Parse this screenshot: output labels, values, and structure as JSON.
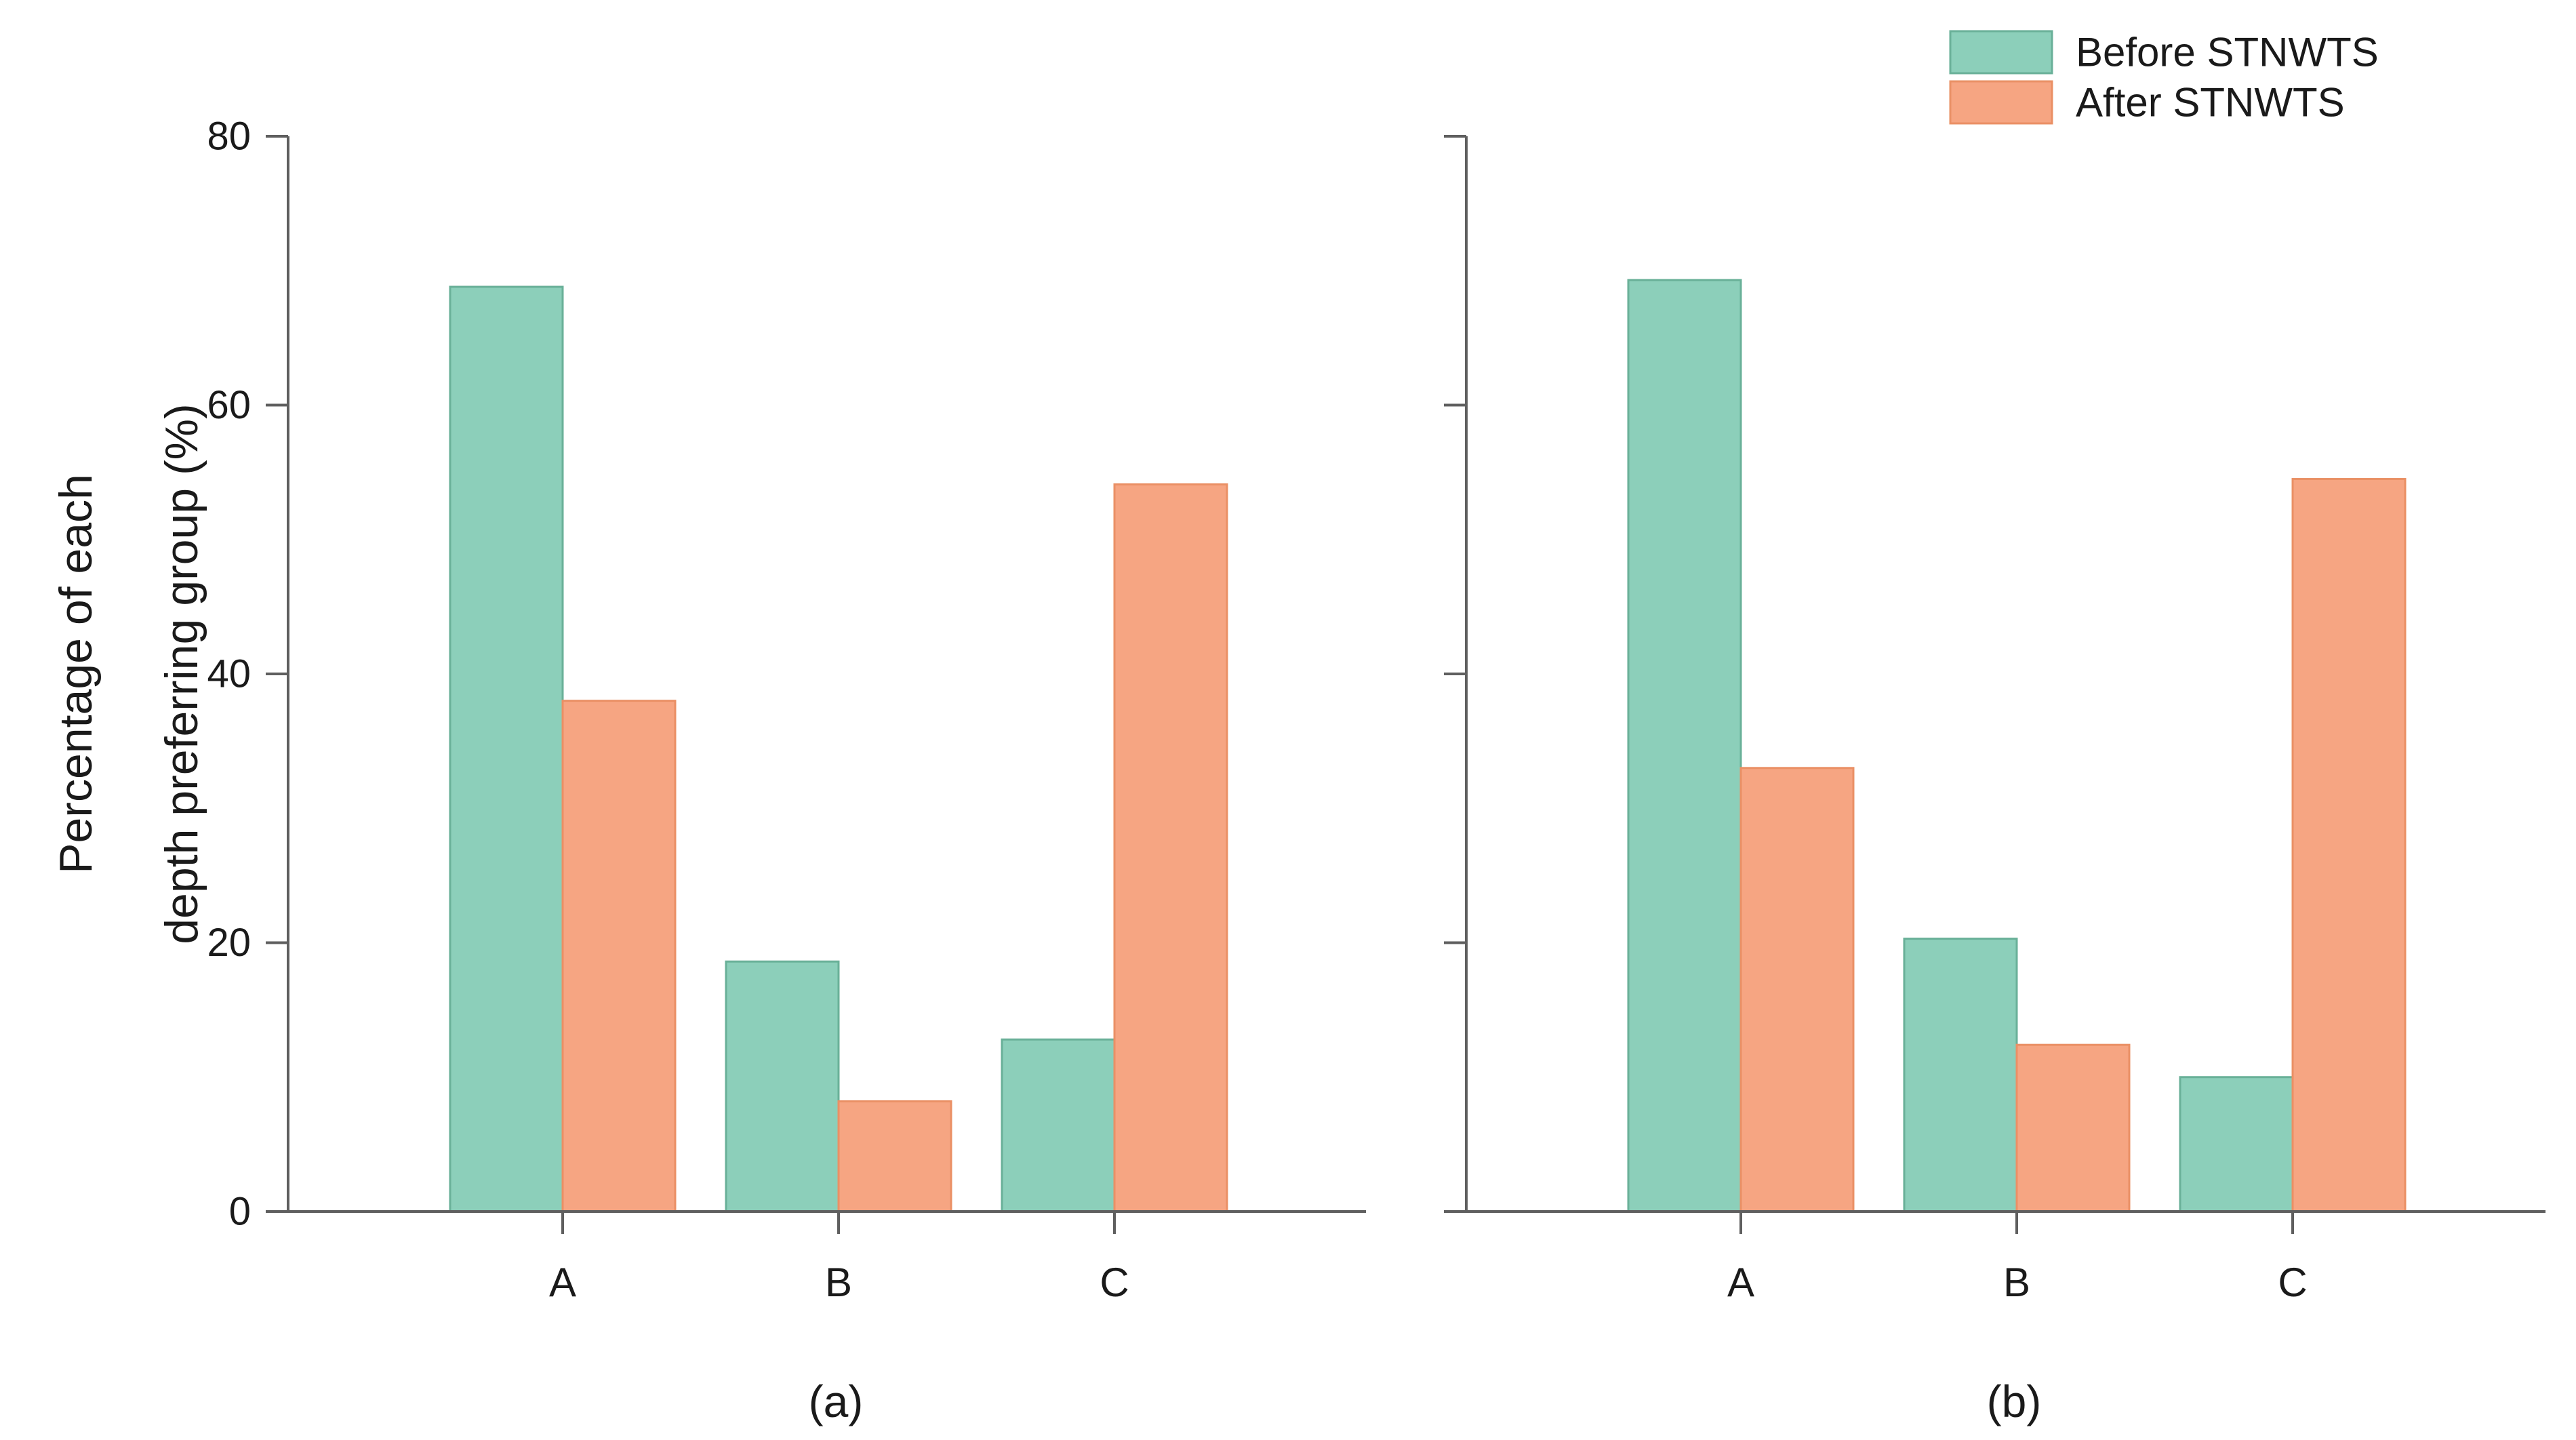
{
  "figure": {
    "background": "#ffffff",
    "description": "Two-panel grouped bar chart comparing depth preferring groups before and after STNWTS"
  },
  "colors": {
    "before_fill": "#8ccfba",
    "before_edge": "#69b098",
    "after_fill": "#f6a582",
    "after_edge": "#ea9065",
    "axis": "#5f5f5f",
    "text": "#1a1a1a"
  },
  "legend": {
    "position": "top-right",
    "items": [
      {
        "label": "Before STNWTS",
        "color": "#8ccfba",
        "edge": "#69b098"
      },
      {
        "label": "After STNWTS",
        "color": "#f6a582",
        "edge": "#ea9065"
      }
    ]
  },
  "ylabel_lines": [
    "Percentage of each",
    "depth preferring group (%)"
  ],
  "chart_data": [
    {
      "type": "bar",
      "panel_label": "(a)",
      "categories": [
        "A",
        "B",
        "C"
      ],
      "series": [
        {
          "name": "Before STNWTS",
          "values": [
            68.8,
            18.6,
            12.8
          ]
        },
        {
          "name": "After STNWTS",
          "values": [
            38.0,
            8.2,
            54.1
          ]
        }
      ],
      "ylim": [
        0,
        80
      ],
      "yticks": [
        0,
        20,
        40,
        60,
        80
      ],
      "show_y_tick_labels": true,
      "grid": false
    },
    {
      "type": "bar",
      "panel_label": "(b)",
      "categories": [
        "A",
        "B",
        "C"
      ],
      "series": [
        {
          "name": "Before STNWTS",
          "values": [
            69.3,
            20.3,
            10.0
          ]
        },
        {
          "name": "After STNWTS",
          "values": [
            33.0,
            12.4,
            54.5
          ]
        }
      ],
      "ylim": [
        0,
        80
      ],
      "yticks": [
        0,
        20,
        40,
        60,
        80
      ],
      "show_y_tick_labels": false,
      "grid": false
    }
  ]
}
